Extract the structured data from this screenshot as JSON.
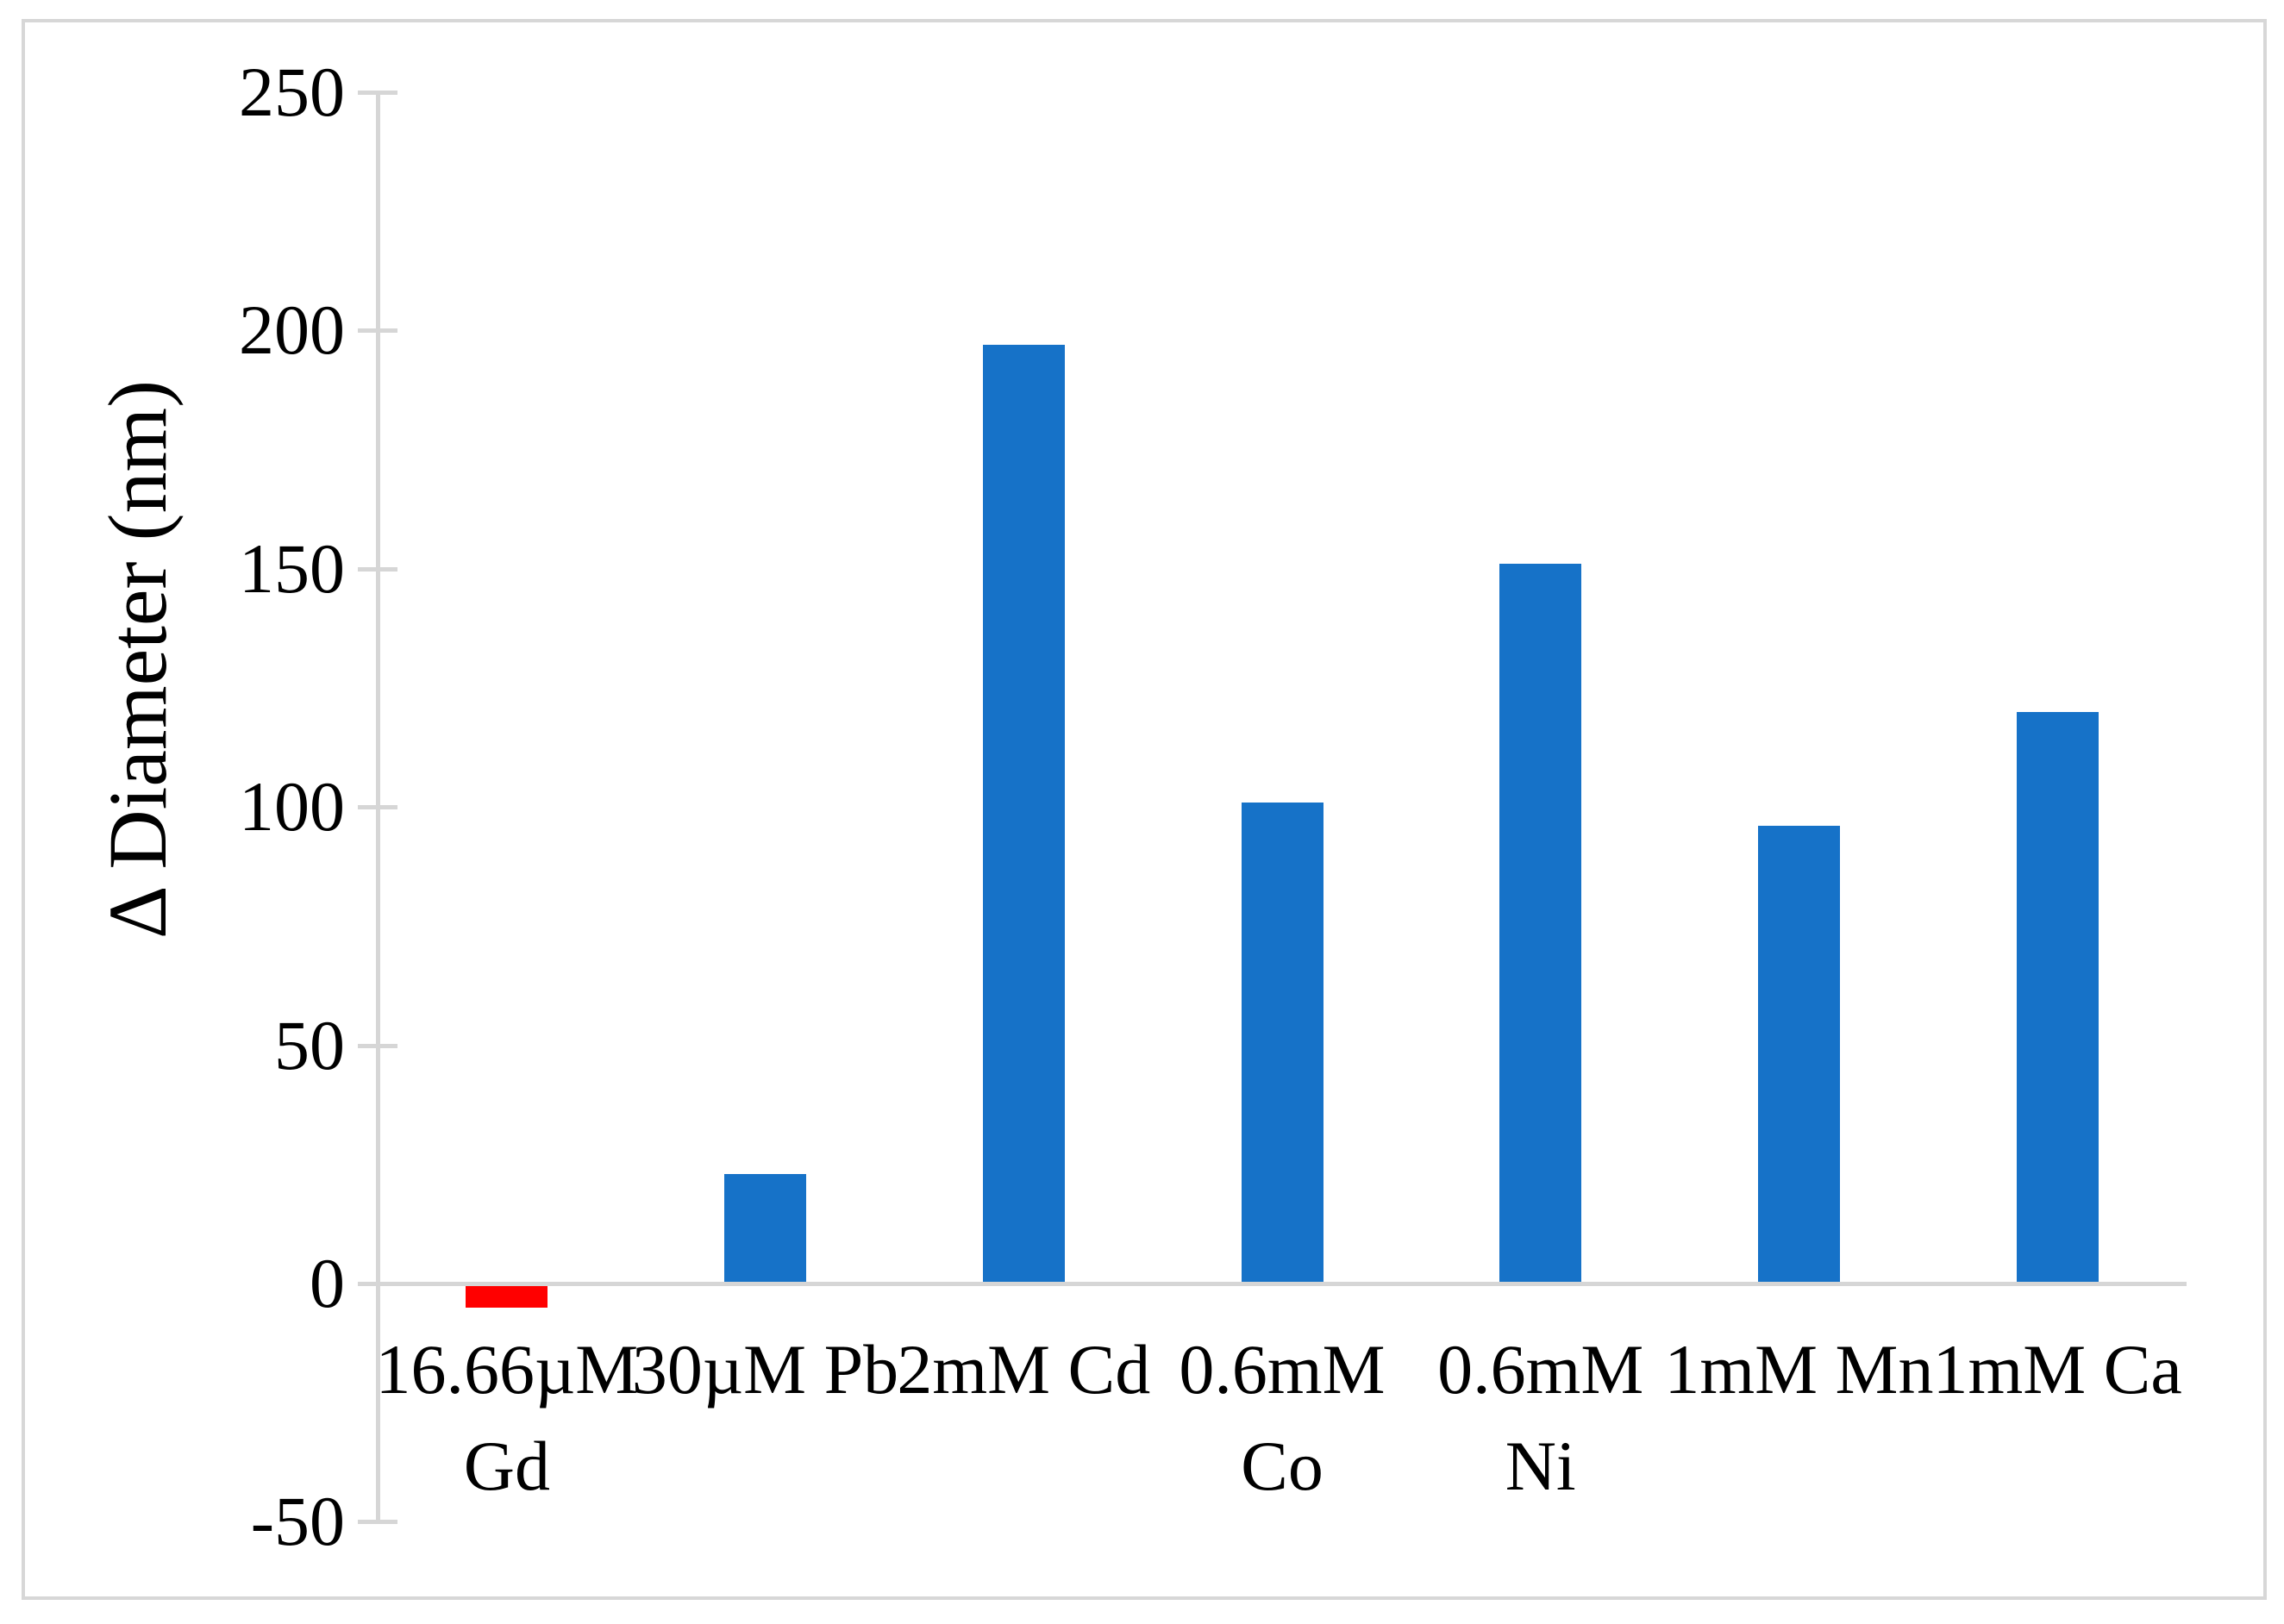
{
  "figure": {
    "background": "#ffffff",
    "frame_border_color": "#d7d7d7"
  },
  "chart_data": {
    "type": "bar",
    "title": "",
    "xlabel": "",
    "ylabel": "Δ Diameter (nm)",
    "categories": [
      "16.66µM Gd",
      "30µM Pb",
      "2mM Cd",
      "0.6mM Co",
      "0.6mM Ni",
      "1mM Mn",
      "1mM Ca"
    ],
    "category_label_lines": [
      [
        "16.66µM",
        "Gd"
      ],
      [
        "30µM Pb"
      ],
      [
        "2mM Cd"
      ],
      [
        "0.6mM",
        "Co"
      ],
      [
        "0.6mM",
        "Ni"
      ],
      [
        "1mM Mn"
      ],
      [
        "1mM Ca"
      ]
    ],
    "values": [
      -5,
      23,
      197,
      101,
      151,
      96,
      120
    ],
    "bar_colors": [
      "#ff0000",
      "#1672c8",
      "#1672c8",
      "#1672c8",
      "#1672c8",
      "#1672c8",
      "#1672c8"
    ],
    "ylim": [
      -50,
      250
    ],
    "yticks": [
      250,
      200,
      150,
      100,
      50,
      0,
      -50
    ],
    "grid": false,
    "legend": "none",
    "axis_color": "#d6d6d6",
    "text_color": "#000000"
  }
}
